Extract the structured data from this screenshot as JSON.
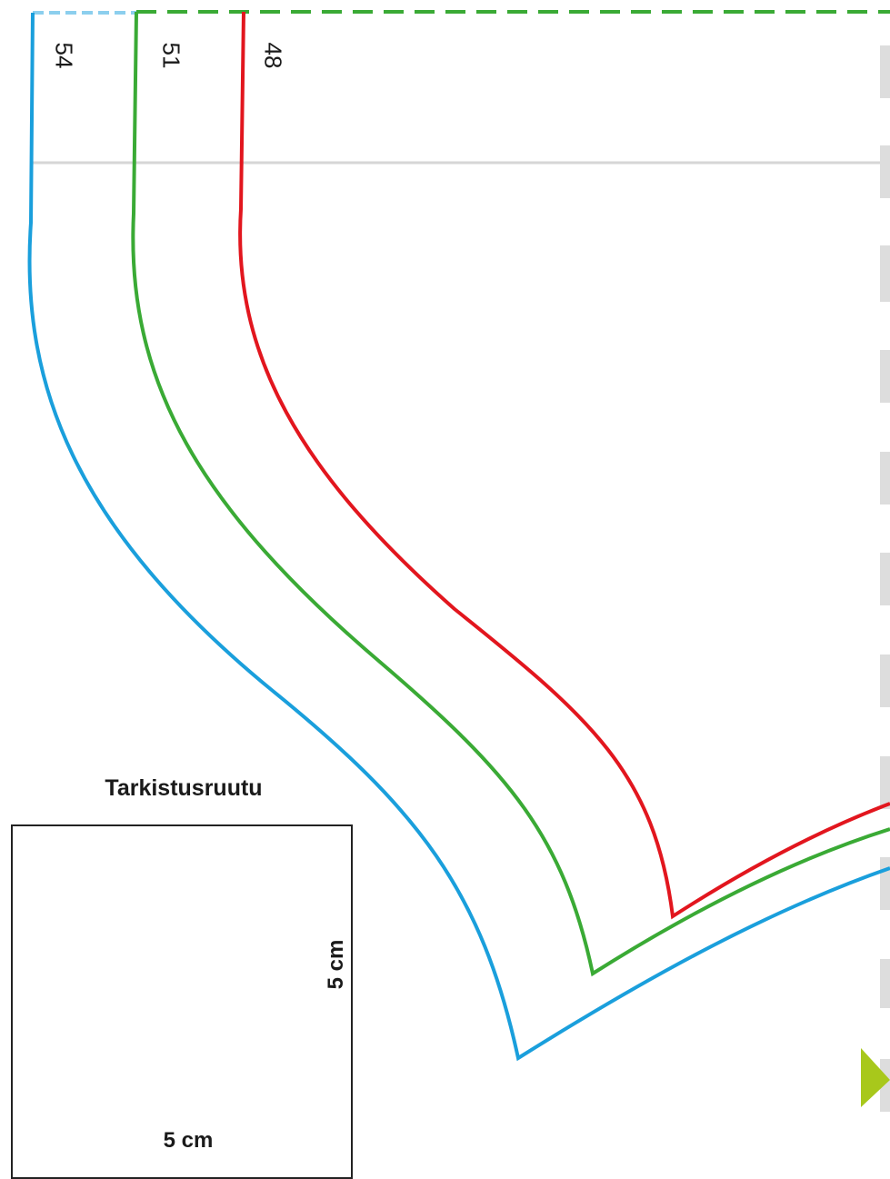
{
  "pattern": {
    "size_labels": [
      "54",
      "51",
      "48"
    ],
    "size_colors": {
      "54": "#1a9fdc",
      "51": "#3aaa35",
      "48": "#e2161e"
    },
    "fold_marker_color": "#a8c81b",
    "margin_guide_color": "#dddddd"
  },
  "check_square": {
    "title": "Tarkistusruutu",
    "height_label": "5 cm",
    "width_label": "5 cm"
  }
}
